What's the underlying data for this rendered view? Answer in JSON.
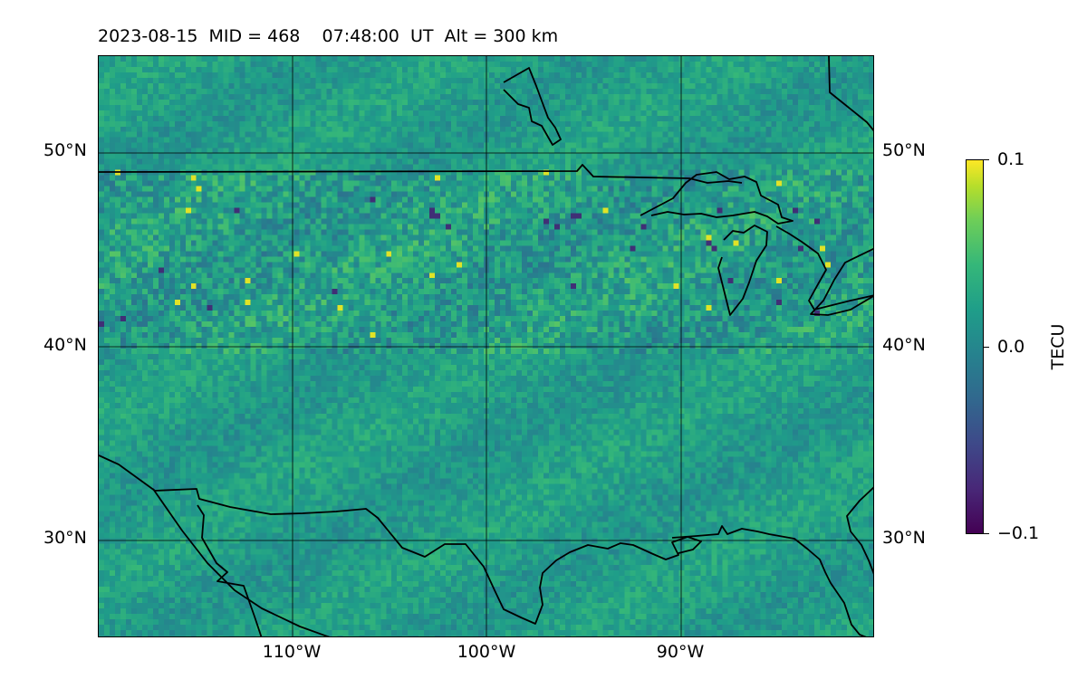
{
  "title": "2023-08-15  MID = 468    07:48:00  UT  Alt = 300 km",
  "map": {
    "lon_range": [
      -120,
      -80
    ],
    "lat_range": [
      25,
      55
    ],
    "grid": true,
    "lat_ticks": [
      "50°N",
      "40°N",
      "30°N"
    ],
    "lon_ticks": [
      "110°W",
      "100°W",
      "90°W"
    ],
    "coastlines": true,
    "borders": true
  },
  "colorbar": {
    "label": "TECU",
    "colormap": "viridis",
    "ticks": [
      "0.1",
      "0.0",
      "−0.1"
    ],
    "vmin": -0.1,
    "vmax": 0.1
  },
  "colors": {
    "grid": "#000000",
    "coastline": "#000000",
    "background_field": "#2a8b8a"
  }
}
